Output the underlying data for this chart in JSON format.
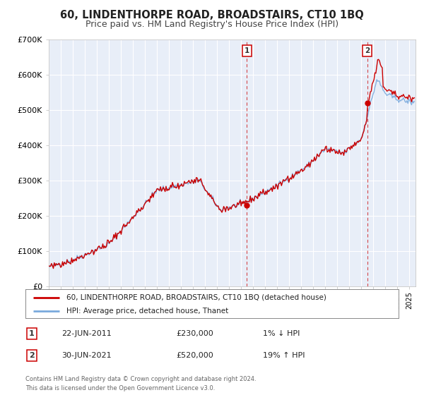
{
  "title": "60, LINDENTHORPE ROAD, BROADSTAIRS, CT10 1BQ",
  "subtitle": "Price paid vs. HM Land Registry's House Price Index (HPI)",
  "ylim": [
    0,
    700000
  ],
  "xlim_start": 1995.0,
  "xlim_end": 2025.5,
  "background_color": "#e8eef8",
  "grid_color": "#ffffff",
  "hpi_color": "#7aaadd",
  "price_color": "#cc0000",
  "sale1_x": 2011.474,
  "sale1_y": 230000,
  "sale2_x": 2021.495,
  "sale2_y": 520000,
  "legend_label1": "60, LINDENTHORPE ROAD, BROADSTAIRS, CT10 1BQ (detached house)",
  "legend_label2": "HPI: Average price, detached house, Thanet",
  "annotation1_date": "22-JUN-2011",
  "annotation1_price": "£230,000",
  "annotation1_hpi": "1% ↓ HPI",
  "annotation2_date": "30-JUN-2021",
  "annotation2_price": "£520,000",
  "annotation2_hpi": "19% ↑ HPI",
  "footer": "Contains HM Land Registry data © Crown copyright and database right 2024.\nThis data is licensed under the Open Government Licence v3.0.",
  "title_fontsize": 10.5,
  "subtitle_fontsize": 9,
  "ytick_labels": [
    "£0",
    "£100K",
    "£200K",
    "£300K",
    "£400K",
    "£500K",
    "£600K",
    "£700K"
  ],
  "ytick_values": [
    0,
    100000,
    200000,
    300000,
    400000,
    500000,
    600000,
    700000
  ]
}
